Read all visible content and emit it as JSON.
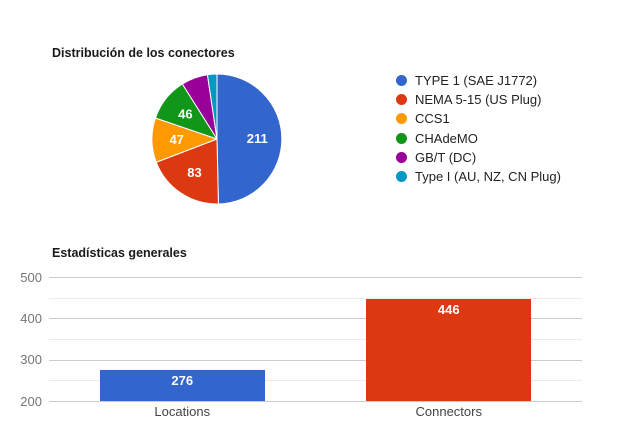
{
  "chart_data": [
    {
      "type": "pie",
      "title": "Distribución de los conectores",
      "legend_position": "right",
      "slice_border_color": "#ffffff",
      "slice_label_color": "#ffffff",
      "slices": [
        {
          "label": "TYPE 1 (SAE J1772)",
          "value": 211,
          "color": "#3366CC",
          "show_label": true
        },
        {
          "label": "NEMA 5-15 (US Plug)",
          "value": 83,
          "color": "#DC3912",
          "show_label": true
        },
        {
          "label": "CCS1",
          "value": 47,
          "color": "#FF9900",
          "show_label": true
        },
        {
          "label": "CHAdeMO",
          "value": 46,
          "color": "#109618",
          "show_label": true
        },
        {
          "label": "GB/T (DC)",
          "value": 28,
          "color": "#990099",
          "show_label": false
        },
        {
          "label": "Type I (AU, NZ, CN Plug)",
          "value": 10,
          "color": "#0099C6",
          "show_label": false
        }
      ]
    },
    {
      "type": "bar",
      "title": "Estadísticas generales",
      "categories": [
        "Locations",
        "Connectors"
      ],
      "values": [
        276,
        446
      ],
      "colors": [
        "#3366CC",
        "#DC3912"
      ],
      "value_label_color": "#ffffff",
      "ylim": [
        200,
        500
      ],
      "yticks": [
        200,
        300,
        400,
        500
      ],
      "minor_gridlines": [
        250,
        350,
        450
      ],
      "grid": true,
      "major_grid_color": "#cccccc",
      "minor_grid_color": "#ebebeb",
      "legend_position": "none"
    }
  ]
}
